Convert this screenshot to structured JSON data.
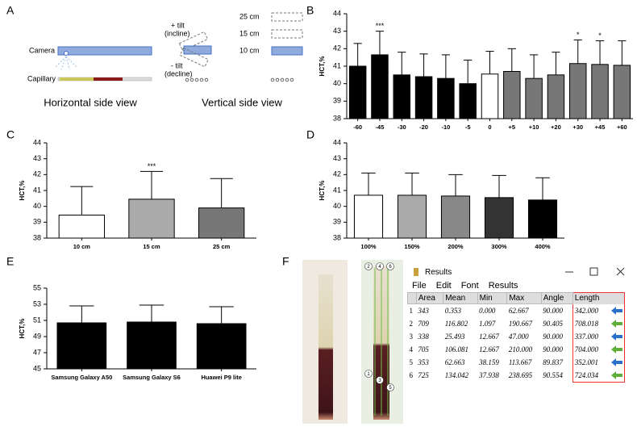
{
  "panels": [
    "A",
    "B",
    "C",
    "D",
    "E",
    "F"
  ],
  "diagram": {
    "camera": "Camera",
    "capillary": "Capillary",
    "horizontal": "Horizontal side view",
    "vertical": "Vertical side view",
    "plus_tilt": "+ tilt",
    "incline": "(incline)",
    "minus_tilt": "- tilt",
    "decline": "(decline)",
    "distances": [
      "25 cm",
      "15 cm",
      "10 cm"
    ]
  },
  "chart_data": [
    {
      "type": "bar",
      "ylabel": "HCT,%",
      "categories": [
        "-60",
        "-45",
        "-30",
        "-20",
        "-10",
        "-5",
        "0",
        "+5",
        "+10",
        "+20",
        "+30",
        "+45",
        "+60"
      ],
      "values": [
        41.0,
        41.65,
        40.5,
        40.4,
        40.3,
        40.0,
        40.55,
        40.7,
        40.3,
        40.5,
        41.15,
        41.1,
        41.05
      ],
      "errors": [
        1.3,
        1.35,
        1.3,
        1.3,
        1.35,
        1.35,
        1.3,
        1.3,
        1.35,
        1.3,
        1.35,
        1.35,
        1.4
      ],
      "colors": [
        "#000000",
        "#000000",
        "#000000",
        "#000000",
        "#000000",
        "#000000",
        "#ffffff",
        "#777777",
        "#777777",
        "#777777",
        "#777777",
        "#777777",
        "#777777"
      ],
      "ylim": [
        38,
        44
      ],
      "yticks": [
        38,
        39,
        40,
        41,
        42,
        43,
        44
      ],
      "annotations": [
        {
          "text": "***",
          "x": "-45"
        },
        {
          "text": "*",
          "x": "+30"
        },
        {
          "text": "*",
          "x": "+45"
        }
      ]
    },
    {
      "type": "bar",
      "ylabel": "HCT,%",
      "categories": [
        "10 cm",
        "15 cm",
        "25 cm"
      ],
      "values": [
        39.45,
        40.45,
        39.9
      ],
      "errors": [
        1.8,
        1.75,
        1.85
      ],
      "colors": [
        "#ffffff",
        "#aaaaaa",
        "#777777"
      ],
      "ylim": [
        38,
        44
      ],
      "yticks": [
        38,
        39,
        40,
        41,
        42,
        43,
        44
      ],
      "annotations": [
        {
          "text": "***",
          "x": "15 cm"
        }
      ]
    },
    {
      "type": "bar",
      "ylabel": "HCT,%",
      "categories": [
        "100%",
        "150%",
        "200%",
        "300%",
        "400%"
      ],
      "values": [
        40.7,
        40.7,
        40.65,
        40.55,
        40.4
      ],
      "errors": [
        1.4,
        1.4,
        1.35,
        1.4,
        1.4
      ],
      "colors": [
        "#ffffff",
        "#aaaaaa",
        "#888888",
        "#333333",
        "#000000"
      ],
      "ylim": [
        38,
        44
      ],
      "yticks": [
        38,
        39,
        40,
        41,
        42,
        43,
        44
      ]
    },
    {
      "type": "bar",
      "ylabel": "HCT,%",
      "categories": [
        "Samsung Galaxy A50",
        "Samsung Galaxy S6",
        "Huawei P9 lite"
      ],
      "values": [
        50.7,
        50.8,
        50.6
      ],
      "errors": [
        2.1,
        2.1,
        2.1
      ],
      "colors": [
        "#000000",
        "#000000",
        "#000000"
      ],
      "ylim": [
        45,
        55
      ],
      "yticks": [
        45,
        47,
        49,
        51,
        53,
        55
      ]
    }
  ],
  "photo": {
    "markers": [
      "2",
      "4",
      "6",
      "1",
      "3",
      "5"
    ]
  },
  "results": {
    "title": "Results",
    "menu": [
      "File",
      "Edit",
      "Font",
      "Results"
    ],
    "columns": [
      "Area",
      "Mean",
      "Min",
      "Max",
      "Angle",
      "Length"
    ],
    "rows": [
      [
        "1",
        "343",
        "0.353",
        "0.000",
        "62.667",
        "90.000",
        "342.000"
      ],
      [
        "2",
        "709",
        "116.802",
        "1.097",
        "190.667",
        "90.405",
        "708.018"
      ],
      [
        "3",
        "338",
        "25.493",
        "12.667",
        "47.000",
        "90.000",
        "337.000"
      ],
      [
        "4",
        "705",
        "106.081",
        "12.667",
        "210.000",
        "90.000",
        "704.000"
      ],
      [
        "5",
        "353",
        "62.663",
        "38.159",
        "113.667",
        "89.837",
        "352.001"
      ],
      [
        "6",
        "725",
        "134.042",
        "37.938",
        "238.695",
        "90.554",
        "724.034"
      ]
    ]
  }
}
